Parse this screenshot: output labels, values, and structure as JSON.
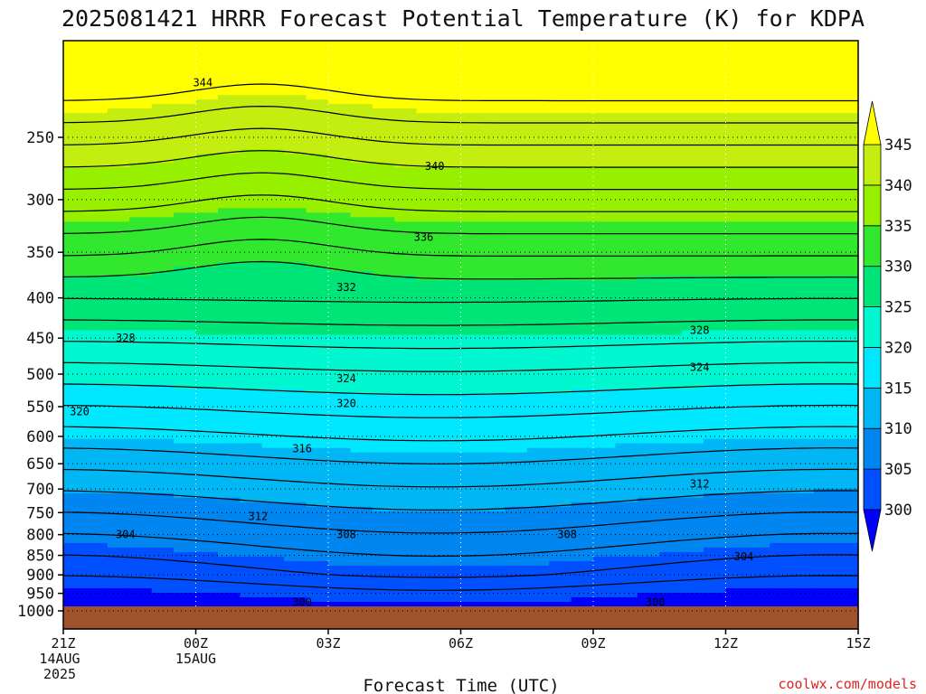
{
  "chart_data": {
    "type": "heatmap",
    "title": "2025081421 HRRR Forecast Potential Temperature (K) for KDPA",
    "xlabel": "Forecast Time (UTC)",
    "ylabel": "",
    "x_ticks": [
      {
        "lines": [
          "21Z",
          "14AUG",
          "2025"
        ],
        "hour": 0
      },
      {
        "lines": [
          "00Z",
          "15AUG"
        ],
        "hour": 3
      },
      {
        "lines": [
          "03Z"
        ],
        "hour": 6
      },
      {
        "lines": [
          "06Z"
        ],
        "hour": 9
      },
      {
        "lines": [
          "09Z"
        ],
        "hour": 12
      },
      {
        "lines": [
          "12Z"
        ],
        "hour": 15
      },
      {
        "lines": [
          "15Z"
        ],
        "hour": 18
      }
    ],
    "xlim": [
      0,
      18
    ],
    "y_ticks": [
      250,
      300,
      350,
      400,
      450,
      500,
      550,
      600,
      650,
      700,
      750,
      800,
      850,
      900,
      950,
      1000
    ],
    "ylim": [
      1000,
      200
    ],
    "y_scale": "log",
    "grid": true,
    "fill_levels": [
      300,
      305,
      310,
      315,
      320,
      325,
      330,
      335,
      340,
      345
    ],
    "fill_colors": [
      "#0000ff",
      "#0050ff",
      "#0086f0",
      "#00b6f5",
      "#00e8ff",
      "#00f7d0",
      "#00e578",
      "#31e82e",
      "#96f000",
      "#c4ee10",
      "#ffff00"
    ],
    "colorbar_ticks": [
      300,
      305,
      310,
      315,
      320,
      325,
      330,
      335,
      340,
      345
    ],
    "ground_color": "#a0522d",
    "contour_labels": [
      {
        "value": "344",
        "hour": 2.75,
        "p": 213
      },
      {
        "value": "340",
        "hour": 8.0,
        "p": 272
      },
      {
        "value": "336",
        "hour": 7.75,
        "p": 335
      },
      {
        "value": "332",
        "hour": 6.0,
        "p": 388
      },
      {
        "value": "328",
        "hour": 1.0,
        "p": 450
      },
      {
        "value": "328",
        "hour": 14.0,
        "p": 440
      },
      {
        "value": "324",
        "hour": 6.0,
        "p": 507
      },
      {
        "value": "324",
        "hour": 14.0,
        "p": 490
      },
      {
        "value": "320",
        "hour": -0.75,
        "p": 558
      },
      {
        "value": "320",
        "hour": 6.0,
        "p": 545
      },
      {
        "value": "316",
        "hour": 5.0,
        "p": 622
      },
      {
        "value": "312",
        "hour": 14.0,
        "p": 690
      },
      {
        "value": "312",
        "hour": 4.0,
        "p": 758
      },
      {
        "value": "308",
        "hour": 6.0,
        "p": 800
      },
      {
        "value": "308",
        "hour": 11.0,
        "p": 800
      },
      {
        "value": "304",
        "hour": 1.0,
        "p": 800
      },
      {
        "value": "304",
        "hour": 15.0,
        "p": 853
      },
      {
        "value": "300",
        "hour": 5.0,
        "p": 975
      },
      {
        "value": "300",
        "hour": 13.0,
        "p": 975
      }
    ]
  },
  "credit": "coolwx.com/models"
}
